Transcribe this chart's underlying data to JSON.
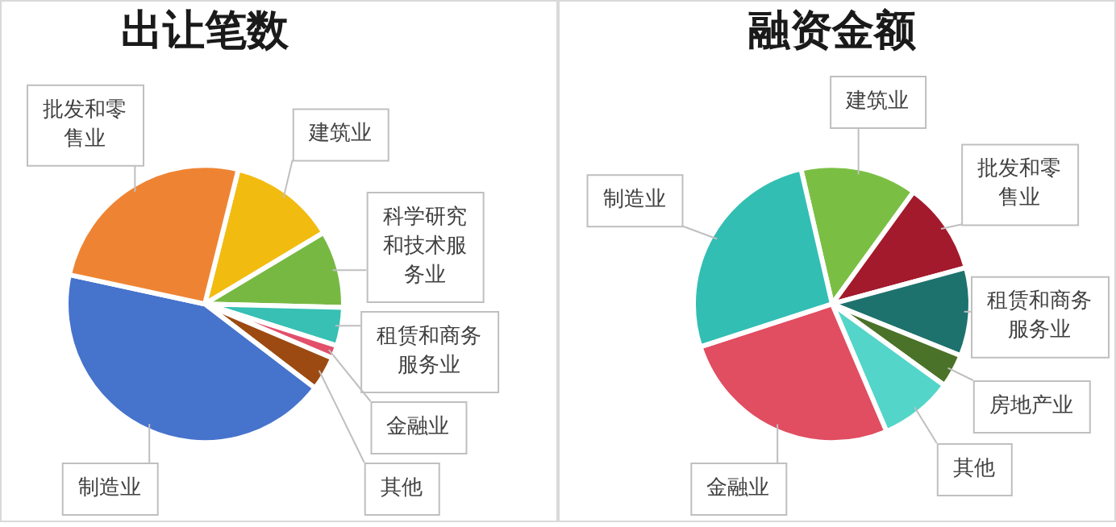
{
  "chart_data": [
    {
      "type": "pie",
      "title": "出让笔数",
      "categories": [
        "建筑业",
        "科学研究和技术服务业",
        "租赁和商务服务业",
        "金融业",
        "其他",
        "制造业",
        "批发和零售业"
      ],
      "values": [
        12.5,
        9,
        4.5,
        1.5,
        4,
        43,
        25.5
      ],
      "colors": [
        "#f2bb0f",
        "#77b843",
        "#37c0b3",
        "#e2506a",
        "#9c4a12",
        "#4673cc",
        "#ee8433"
      ]
    },
    {
      "type": "pie",
      "title": "融资金额",
      "categories": [
        "建筑业",
        "批发和零售业",
        "租赁和商务服务业",
        "房地产业",
        "其他",
        "金融业",
        "制造业"
      ],
      "values": [
        13.6,
        10.8,
        10.3,
        3.9,
        8.6,
        26.4,
        26.4
      ],
      "colors": [
        "#7abf44",
        "#a31a2c",
        "#1e726d",
        "#4a7228",
        "#54d5c9",
        "#e14d61",
        "#32beb3"
      ]
    }
  ]
}
